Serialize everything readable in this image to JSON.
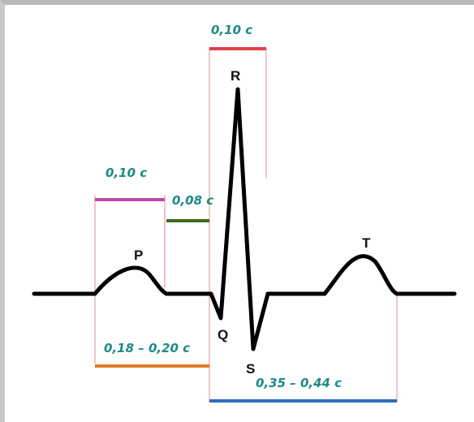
{
  "waves": {
    "p": "P",
    "q": "Q",
    "r": "R",
    "s": "S",
    "t": "T"
  },
  "intervals": {
    "qrs": {
      "label": "0,10 c",
      "color": "#e0404a"
    },
    "p_wave": {
      "label": "0,10 c",
      "color": "#c04aa8"
    },
    "pq_segment": {
      "label": "0,08 c",
      "color": "#3f6b1f"
    },
    "pq_interval": {
      "label": "0,18 – 0,20 c",
      "color": "#e07a28"
    },
    "qt_interval": {
      "label": "0,35 – 0,44 c",
      "color": "#2f6cc0"
    }
  },
  "colors": {
    "trace": "#000000",
    "guide_red": "#e58a8a",
    "label_teal": "#1c8a86"
  }
}
